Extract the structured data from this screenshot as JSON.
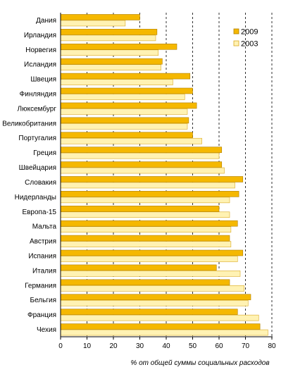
{
  "chart_data": {
    "type": "bar",
    "orientation": "horizontal",
    "categories": [
      "Дания",
      "Ирландия",
      "Норвегия",
      "Исландия",
      "Швеция",
      "Финляндия",
      "Люксембург",
      "Великобритания",
      "Португалия",
      "Греция",
      "Швейцария",
      "Словакия",
      "Нидерланды",
      "Европа-15",
      "Мальта",
      "Австрия",
      "Испания",
      "Италия",
      "Германия",
      "Бельгия",
      "Франция",
      "Чехия"
    ],
    "series": [
      {
        "name": "2009",
        "color": "#F5B800",
        "values": [
          30,
          36.5,
          44,
          38.5,
          49,
          50,
          51.5,
          48.5,
          50,
          61,
          61,
          69,
          67.5,
          60,
          67,
          64,
          69,
          59,
          64,
          72,
          67,
          75.5
        ]
      },
      {
        "name": "2003",
        "color": "#FFF2B3",
        "values": [
          24.5,
          36,
          37,
          38,
          42.5,
          47,
          48,
          48,
          53.5,
          60,
          62,
          66,
          64,
          64,
          64.5,
          64.5,
          67,
          68,
          69.5,
          71,
          75,
          78.5
        ]
      }
    ],
    "xlim": [
      0,
      80
    ],
    "xticks": [
      0,
      10,
      20,
      30,
      40,
      50,
      60,
      70,
      80
    ],
    "xlabel": "% от общей суммы социальных расходов",
    "title": "",
    "grid": "vertical-dashed",
    "legend": "top-right"
  }
}
